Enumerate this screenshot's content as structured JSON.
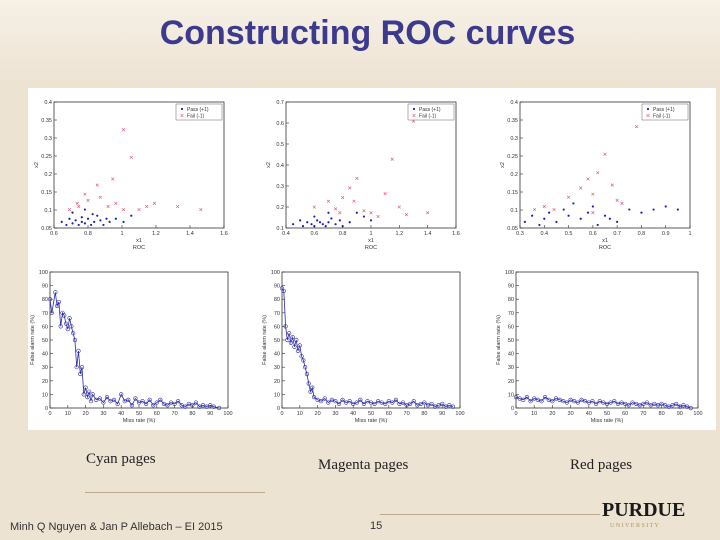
{
  "slide": {
    "title": "Constructing ROC curves",
    "footer": "Minh Q Nguyen & Jan P Allebach – EI 2015",
    "page_number": "15",
    "logo_text": "PURDUE",
    "logo_subtext": "U N I V E R S I T Y"
  },
  "captions": [
    "Cyan pages",
    "Magenta pages",
    "Red pages"
  ],
  "colors": {
    "title": "#3b3a8f",
    "pass": "#1f1fb4",
    "fail": "#e0506e",
    "roc": "#2b2ba8",
    "background": "#ede3d3"
  },
  "chart_data": [
    {
      "type": "scatter",
      "name": "cyan-scatter",
      "xlabel": "x1",
      "ylabel": "x2",
      "caption_under": "ROC",
      "xlim": [
        0.5,
        1.6
      ],
      "ylim": [
        0.04,
        0.45
      ],
      "xticks": [
        "0.6",
        "0.8",
        "1",
        "1.2",
        "1.4",
        "1.6"
      ],
      "yticks": [
        "0.05",
        "0.1",
        "0.15",
        "0.2",
        "0.25",
        "0.3",
        "0.35",
        "0.4"
      ],
      "legend": [
        "Pass (+1)",
        "Fail (-1)"
      ],
      "series": [
        {
          "name": "Pass (+1)",
          "points": [
            [
              0.55,
              0.06
            ],
            [
              0.58,
              0.05
            ],
            [
              0.6,
              0.07
            ],
            [
              0.62,
              0.055
            ],
            [
              0.64,
              0.065
            ],
            [
              0.66,
              0.05
            ],
            [
              0.68,
              0.06
            ],
            [
              0.7,
              0.055
            ],
            [
              0.72,
              0.07
            ],
            [
              0.74,
              0.05
            ],
            [
              0.76,
              0.06
            ],
            [
              0.78,
              0.08
            ],
            [
              0.8,
              0.065
            ],
            [
              0.82,
              0.05
            ],
            [
              0.84,
              0.07
            ],
            [
              0.86,
              0.06
            ],
            [
              0.62,
              0.09
            ],
            [
              0.7,
              0.1
            ],
            [
              0.9,
              0.07
            ],
            [
              0.95,
              0.06
            ],
            [
              1.0,
              0.08
            ],
            [
              0.75,
              0.085
            ],
            [
              0.68,
              0.075
            ]
          ]
        },
        {
          "name": "Fail (-1)",
          "points": [
            [
              0.6,
              0.1
            ],
            [
              0.65,
              0.12
            ],
            [
              0.7,
              0.15
            ],
            [
              0.72,
              0.13
            ],
            [
              0.78,
              0.18
            ],
            [
              0.8,
              0.14
            ],
            [
              0.85,
              0.11
            ],
            [
              0.9,
              0.12
            ],
            [
              0.95,
              0.1
            ],
            [
              1.0,
              0.27
            ],
            [
              1.05,
              0.1
            ],
            [
              1.1,
              0.11
            ],
            [
              1.15,
              0.12
            ],
            [
              1.3,
              0.11
            ],
            [
              1.45,
              0.1
            ],
            [
              0.95,
              0.36
            ],
            [
              0.88,
              0.2
            ],
            [
              0.66,
              0.11
            ]
          ]
        }
      ]
    },
    {
      "type": "scatter",
      "name": "magenta-scatter",
      "xlabel": "x1",
      "ylabel": "x2",
      "caption_under": "ROC",
      "xlim": [
        0.4,
        1.6
      ],
      "ylim": [
        0.04,
        0.7
      ],
      "xticks": [
        "0.4",
        "0.6",
        "0.8",
        "1",
        "1.2",
        "1.4",
        "1.6"
      ],
      "yticks": [
        "0.1",
        "0.2",
        "0.3",
        "0.4",
        "0.5",
        "0.6",
        "0.7"
      ],
      "legend": [
        "Pass (+1)",
        "Fail (-1)"
      ],
      "series": [
        {
          "name": "Pass (+1)",
          "points": [
            [
              0.45,
              0.06
            ],
            [
              0.5,
              0.08
            ],
            [
              0.52,
              0.05
            ],
            [
              0.55,
              0.07
            ],
            [
              0.58,
              0.06
            ],
            [
              0.6,
              0.05
            ],
            [
              0.62,
              0.08
            ],
            [
              0.64,
              0.07
            ],
            [
              0.66,
              0.06
            ],
            [
              0.68,
              0.05
            ],
            [
              0.7,
              0.07
            ],
            [
              0.72,
              0.09
            ],
            [
              0.75,
              0.06
            ],
            [
              0.78,
              0.08
            ],
            [
              0.8,
              0.05
            ],
            [
              0.85,
              0.07
            ],
            [
              0.9,
              0.12
            ],
            [
              0.95,
              0.1
            ],
            [
              1.0,
              0.08
            ],
            [
              0.6,
              0.1
            ],
            [
              0.7,
              0.12
            ]
          ]
        },
        {
          "name": "Fail (-1)",
          "points": [
            [
              0.6,
              0.15
            ],
            [
              0.7,
              0.18
            ],
            [
              0.75,
              0.14
            ],
            [
              0.8,
              0.2
            ],
            [
              0.85,
              0.25
            ],
            [
              0.9,
              0.3
            ],
            [
              0.95,
              0.13
            ],
            [
              1.0,
              0.12
            ],
            [
              1.05,
              0.1
            ],
            [
              1.1,
              0.22
            ],
            [
              1.15,
              0.4
            ],
            [
              1.2,
              0.15
            ],
            [
              1.25,
              0.11
            ],
            [
              1.3,
              0.6
            ],
            [
              1.4,
              0.12
            ],
            [
              0.88,
              0.18
            ],
            [
              0.78,
              0.12
            ]
          ]
        }
      ]
    },
    {
      "type": "scatter",
      "name": "red-scatter",
      "xlabel": "x1",
      "ylabel": "x2",
      "caption_under": "ROC",
      "xlim": [
        0.3,
        1.0
      ],
      "ylim": [
        0.04,
        0.45
      ],
      "xticks": [
        "0.3",
        "0.4",
        "0.5",
        "0.6",
        "0.7",
        "0.8",
        "0.9",
        "1"
      ],
      "yticks": [
        "0.05",
        "0.1",
        "0.15",
        "0.2",
        "0.25",
        "0.3",
        "0.35",
        "0.4"
      ],
      "legend": [
        "Pass (+1)",
        "Fail (-1)"
      ],
      "series": [
        {
          "name": "Pass (+1)",
          "points": [
            [
              0.32,
              0.06
            ],
            [
              0.35,
              0.08
            ],
            [
              0.38,
              0.05
            ],
            [
              0.4,
              0.07
            ],
            [
              0.42,
              0.09
            ],
            [
              0.45,
              0.06
            ],
            [
              0.48,
              0.1
            ],
            [
              0.5,
              0.08
            ],
            [
              0.52,
              0.12
            ],
            [
              0.55,
              0.07
            ],
            [
              0.58,
              0.09
            ],
            [
              0.6,
              0.11
            ],
            [
              0.62,
              0.05
            ],
            [
              0.65,
              0.08
            ],
            [
              0.7,
              0.06
            ],
            [
              0.75,
              0.1
            ],
            [
              0.8,
              0.09
            ],
            [
              0.85,
              0.1
            ],
            [
              0.9,
              0.11
            ],
            [
              0.95,
              0.1
            ],
            [
              0.67,
              0.07
            ]
          ]
        },
        {
          "name": "Fail (-1)",
          "points": [
            [
              0.36,
              0.1
            ],
            [
              0.4,
              0.11
            ],
            [
              0.44,
              0.1
            ],
            [
              0.5,
              0.14
            ],
            [
              0.55,
              0.17
            ],
            [
              0.58,
              0.2
            ],
            [
              0.6,
              0.15
            ],
            [
              0.62,
              0.22
            ],
            [
              0.65,
              0.28
            ],
            [
              0.68,
              0.18
            ],
            [
              0.7,
              0.13
            ],
            [
              0.72,
              0.12
            ],
            [
              0.78,
              0.37
            ],
            [
              0.6,
              0.09
            ]
          ]
        }
      ]
    },
    {
      "type": "line",
      "name": "cyan-roc",
      "xlabel": "Miss rate (%)",
      "ylabel": "False alarm rate (%)",
      "xlim": [
        0,
        100
      ],
      "ylim": [
        0,
        100
      ],
      "xticks": [
        "0",
        "10",
        "20",
        "30",
        "40",
        "50",
        "60",
        "70",
        "80",
        "90",
        "100"
      ],
      "yticks": [
        "0",
        "10",
        "20",
        "30",
        "40",
        "50",
        "60",
        "70",
        "80",
        "90",
        "100"
      ],
      "x": [
        0,
        1,
        3,
        4,
        5,
        6,
        7,
        8,
        9,
        10,
        11,
        12,
        13,
        14,
        15,
        16,
        17,
        18,
        19,
        20,
        21,
        22,
        23,
        24,
        26,
        28,
        30,
        32,
        34,
        36,
        38,
        40,
        42,
        44,
        46,
        48,
        50,
        52,
        54,
        56,
        58,
        60,
        62,
        64,
        66,
        68,
        70,
        72,
        74,
        76,
        78,
        80,
        82,
        84,
        86,
        88,
        90,
        92,
        95
      ],
      "y": [
        80,
        70,
        85,
        75,
        78,
        60,
        70,
        68,
        62,
        58,
        66,
        60,
        55,
        50,
        30,
        42,
        25,
        30,
        10,
        15,
        8,
        12,
        5,
        10,
        6,
        7,
        4,
        8,
        5,
        6,
        3,
        10,
        5,
        6,
        2,
        7,
        4,
        5,
        3,
        6,
        2,
        4,
        6,
        3,
        2,
        4,
        3,
        5,
        2,
        1,
        3,
        2,
        4,
        1,
        2,
        1,
        2,
        1,
        0
      ]
    },
    {
      "type": "line",
      "name": "magenta-roc",
      "xlabel": "Miss rate (%)",
      "ylabel": "False alarm rate (%)",
      "xlim": [
        0,
        100
      ],
      "ylim": [
        0,
        100
      ],
      "xticks": [
        "0",
        "10",
        "20",
        "30",
        "40",
        "50",
        "60",
        "70",
        "80",
        "90",
        "100"
      ],
      "yticks": [
        "0",
        "10",
        "20",
        "30",
        "40",
        "50",
        "60",
        "70",
        "80",
        "90",
        "100"
      ],
      "x": [
        0,
        1,
        2,
        3,
        4,
        5,
        6,
        7,
        8,
        9,
        10,
        11,
        12,
        13,
        14,
        15,
        16,
        17,
        18,
        20,
        22,
        24,
        26,
        28,
        30,
        32,
        34,
        36,
        38,
        40,
        42,
        44,
        46,
        48,
        50,
        52,
        54,
        56,
        58,
        60,
        62,
        64,
        66,
        68,
        70,
        72,
        74,
        76,
        78,
        80,
        82,
        84,
        86,
        88,
        90,
        92,
        94,
        96
      ],
      "y": [
        88,
        86,
        60,
        50,
        55,
        48,
        52,
        45,
        50,
        42,
        46,
        38,
        35,
        30,
        25,
        18,
        12,
        15,
        8,
        6,
        5,
        7,
        4,
        6,
        5,
        3,
        6,
        4,
        5,
        3,
        4,
        6,
        3,
        5,
        4,
        3,
        5,
        4,
        3,
        5,
        4,
        6,
        3,
        4,
        2,
        3,
        5,
        2,
        3,
        4,
        2,
        3,
        1,
        2,
        3,
        1,
        2,
        1
      ]
    },
    {
      "type": "line",
      "name": "red-roc",
      "xlabel": "Miss rate (%)",
      "ylabel": "False alarm rate (%)",
      "xlim": [
        0,
        100
      ],
      "ylim": [
        0,
        100
      ],
      "xticks": [
        "0",
        "10",
        "20",
        "30",
        "40",
        "50",
        "60",
        "70",
        "80",
        "90",
        "100"
      ],
      "yticks": [
        "0",
        "10",
        "20",
        "30",
        "40",
        "50",
        "60",
        "70",
        "80",
        "90",
        "100"
      ],
      "x": [
        0,
        2,
        4,
        6,
        8,
        10,
        12,
        14,
        16,
        18,
        20,
        22,
        24,
        26,
        28,
        30,
        32,
        34,
        36,
        38,
        40,
        42,
        44,
        46,
        48,
        50,
        52,
        54,
        56,
        58,
        60,
        62,
        64,
        66,
        68,
        70,
        72,
        74,
        76,
        78,
        80,
        82,
        84,
        86,
        88,
        90,
        92,
        94,
        96
      ],
      "y": [
        8,
        7,
        6,
        8,
        5,
        7,
        6,
        5,
        8,
        6,
        5,
        7,
        6,
        5,
        4,
        6,
        5,
        4,
        6,
        5,
        4,
        5,
        3,
        5,
        4,
        3,
        4,
        5,
        3,
        4,
        3,
        2,
        4,
        3,
        2,
        3,
        4,
        2,
        3,
        2,
        3,
        2,
        1,
        2,
        3,
        1,
        2,
        1,
        0
      ]
    }
  ]
}
